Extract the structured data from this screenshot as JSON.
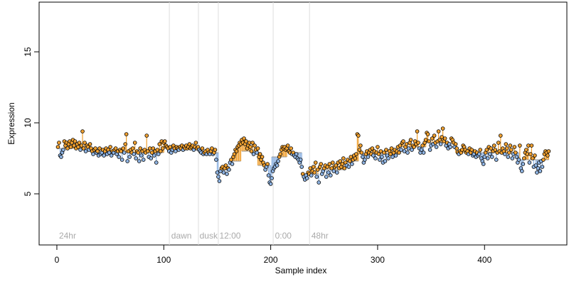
{
  "chart_data": {
    "type": "lollipop",
    "x_label": "Sample index",
    "y_label": "Expression",
    "xlim": [
      -16.6,
      477
    ],
    "ylim": [
      1.4,
      18.5
    ],
    "xticks": [
      0,
      100,
      200,
      300,
      400
    ],
    "yticks": [
      5,
      10,
      15
    ],
    "above_color": "#f0a030",
    "below_color": "#8fb4e3",
    "markers": {
      "x": [
        105.2,
        132.4,
        151,
        202.3,
        236.3
      ],
      "color": "#dddddd"
    },
    "time_labels": [
      {
        "x": 2,
        "label": "24hr"
      },
      {
        "x": 107,
        "label": "dawn"
      },
      {
        "x": 133.5,
        "label": "dusk"
      },
      {
        "x": 152,
        "label": "12:00"
      },
      {
        "x": 204,
        "label": "0:00"
      },
      {
        "x": 238,
        "label": "48hr"
      }
    ],
    "baseline": {
      "x0": [
        1,
        31,
        65,
        101,
        136,
        152,
        161,
        173,
        188,
        201,
        216,
        230,
        246,
        271,
        283,
        321,
        346,
        373,
        401,
        433
      ],
      "x1": [
        30,
        64,
        100,
        135,
        151,
        160,
        172,
        187,
        200,
        215,
        229,
        245,
        270,
        282,
        320,
        345,
        372,
        400,
        432,
        460
      ],
      "values": [
        8.2,
        8.0,
        7.9,
        8.2,
        7.9,
        6.7,
        7.3,
        8.0,
        7.0,
        7.6,
        7.9,
        6.4,
        6.7,
        7.3,
        7.8,
        8.3,
        8.6,
        7.9,
        7.9,
        7.4
      ]
    },
    "series": [
      {
        "x": [
          1,
          2,
          3,
          4,
          5,
          6,
          7,
          8,
          9,
          10,
          11,
          12,
          13,
          14,
          15,
          16,
          17,
          18,
          19,
          20,
          21,
          22,
          23,
          24,
          25,
          26,
          27,
          28,
          29,
          30,
          31,
          32,
          33,
          34,
          35,
          36,
          37,
          38,
          39,
          40,
          41,
          42,
          43,
          44,
          45,
          46,
          47,
          48,
          49,
          50,
          51,
          52,
          53,
          54,
          55,
          56,
          57,
          58,
          59,
          60,
          61,
          62,
          63,
          64,
          65,
          66,
          67,
          68,
          69,
          70,
          71,
          72,
          73,
          74,
          75,
          76,
          77,
          78,
          79,
          80,
          81,
          82,
          83,
          84,
          85,
          86,
          87,
          88,
          89,
          90,
          91,
          92,
          93,
          94,
          95,
          96,
          97,
          98,
          99,
          100,
          101,
          102,
          103,
          104,
          105,
          106,
          107,
          108,
          109,
          110,
          111,
          112,
          113,
          114,
          115,
          116,
          117,
          118,
          119,
          120,
          121,
          122,
          123,
          124,
          125,
          126,
          127,
          128,
          129,
          130,
          131,
          132,
          133,
          134,
          135,
          136,
          137,
          138,
          139,
          140,
          141,
          142,
          143,
          144,
          145,
          146,
          147,
          148,
          149,
          150,
          151,
          152,
          153,
          154,
          155,
          156,
          157,
          158,
          159,
          160,
          161,
          162,
          163,
          164,
          165,
          166,
          167,
          168,
          169,
          170,
          171,
          172,
          173,
          174,
          175,
          176,
          177,
          178,
          179,
          180,
          181,
          182,
          183,
          184,
          185,
          186,
          187,
          188,
          189,
          190,
          191,
          192,
          193,
          194,
          195,
          196,
          197,
          198,
          199,
          200,
          201,
          202,
          203,
          204,
          205,
          206,
          207,
          208,
          209,
          210,
          211,
          212,
          213,
          214,
          215,
          216,
          217,
          218,
          219,
          220,
          221,
          222,
          223,
          224,
          225,
          226,
          227,
          228,
          229,
          230,
          231,
          232,
          233,
          234,
          235,
          236,
          237,
          238,
          239,
          240,
          241,
          242,
          243,
          244,
          245,
          246,
          247,
          248,
          249,
          250,
          251,
          252,
          253,
          254,
          255,
          256,
          257,
          258,
          259,
          260,
          261,
          262,
          263,
          264,
          265,
          266,
          267,
          268,
          269,
          270,
          271,
          272,
          273,
          274,
          275,
          276,
          277,
          278,
          279,
          280,
          281,
          282,
          283,
          284,
          285,
          286,
          287,
          288,
          289,
          290,
          291,
          292,
          293,
          294,
          295,
          296,
          297,
          298,
          299,
          300,
          301,
          302,
          303,
          304,
          305,
          306,
          307,
          308,
          309,
          310,
          311,
          312,
          313,
          314,
          315,
          316,
          317,
          318,
          319,
          320,
          321,
          322,
          323,
          324,
          325,
          326,
          327,
          328,
          329,
          330,
          331,
          332,
          333,
          334,
          335,
          336,
          337,
          338,
          339,
          340,
          341,
          342,
          343,
          344,
          345,
          346,
          347,
          348,
          349,
          350,
          351,
          352,
          353,
          354,
          355,
          356,
          357,
          358,
          359,
          360,
          361,
          362,
          363,
          364,
          365,
          366,
          367,
          368,
          369,
          370,
          371,
          372,
          373,
          374,
          375,
          376,
          377,
          378,
          379,
          380,
          381,
          382,
          383,
          384,
          385,
          386,
          387,
          388,
          389,
          390,
          391,
          392,
          393,
          394,
          395,
          396,
          397,
          398,
          399,
          400,
          401,
          402,
          403,
          404,
          405,
          406,
          407,
          408,
          409,
          410,
          411,
          412,
          413,
          414,
          415,
          416,
          417,
          418,
          419,
          420,
          421,
          422,
          423,
          424,
          425,
          426,
          427,
          428,
          429,
          430,
          431,
          432,
          433,
          434,
          435,
          436,
          437,
          438,
          439,
          440,
          441,
          442,
          443,
          444,
          445,
          446,
          447,
          448,
          449,
          450,
          451,
          452,
          453,
          454,
          455,
          456,
          457,
          458,
          459,
          460
        ],
        "values": [
          8.3,
          8.6,
          7.7,
          7.6,
          7.9,
          8.1,
          8.7,
          8.4,
          8.6,
          8.2,
          8.5,
          8.7,
          8.3,
          8.6,
          8.8,
          8.4,
          8.7,
          8.2,
          8.5,
          8.3,
          8.6,
          8.1,
          8.4,
          9.4,
          8.2,
          8.6,
          8.0,
          8.4,
          8.3,
          8.1,
          8.5,
          8.2,
          8.0,
          7.8,
          8.1,
          8.2,
          7.9,
          8.0,
          7.7,
          8.2,
          7.8,
          7.9,
          8.1,
          7.7,
          8.0,
          8.2,
          7.8,
          8.1,
          7.9,
          8.3,
          7.7,
          8.0,
          7.9,
          8.1,
          8.2,
          7.8,
          8.0,
          7.6,
          8.1,
          8.0,
          7.4,
          8.2,
          7.9,
          8.5,
          9.2,
          7.3,
          8.0,
          7.6,
          8.1,
          7.9,
          8.2,
          7.8,
          8.6,
          7.5,
          8.0,
          7.9,
          7.3,
          8.2,
          7.7,
          8.0,
          7.4,
          8.1,
          7.9,
          9.1,
          8.0,
          7.6,
          8.2,
          7.5,
          7.9,
          8.2,
          7.7,
          8.0,
          7.2,
          8.1,
          7.8,
          8.5,
          8.0,
          8.7,
          8.2,
          8.6,
          8.7,
          8.4,
          8.3,
          8.2,
          8.0,
          8.3,
          7.9,
          8.1,
          8.4,
          8.2,
          8.0,
          8.3,
          8.2,
          8.1,
          8.3,
          8.2,
          8.4,
          8.1,
          8.3,
          8.2,
          8.4,
          8.2,
          8.3,
          8.5,
          8.2,
          8.3,
          8.4,
          8.1,
          8.3,
          8.6,
          8.2,
          8.3,
          8.1,
          8.0,
          7.9,
          8.2,
          7.8,
          7.9,
          8.0,
          7.8,
          8.1,
          7.9,
          7.8,
          8.0,
          8.2,
          7.8,
          7.9,
          8.1,
          7.4,
          6.5,
          6.2,
          5.9,
          6.6,
          6.8,
          6.9,
          6.5,
          6.8,
          7.0,
          6.4,
          6.8,
          6.7,
          7.2,
          7.4,
          7.1,
          7.6,
          7.8,
          8.1,
          8.0,
          8.3,
          8.4,
          8.6,
          8.5,
          8.8,
          8.6,
          8.9,
          8.5,
          8.7,
          8.2,
          8.4,
          8.6,
          8.3,
          8.0,
          8.6,
          7.8,
          8.4,
          8.1,
          7.9,
          8.2,
          7.6,
          7.8,
          7.4,
          7.6,
          7.2,
          7.0,
          6.7,
          6.9,
          7.1,
          6.3,
          5.8,
          5.7,
          6.1,
          6.6,
          6.8,
          6.9,
          7.1,
          7.0,
          7.3,
          7.6,
          7.8,
          8.1,
          8.3,
          8.2,
          8.3,
          8.1,
          8.2,
          8.4,
          8.0,
          7.9,
          8.2,
          7.8,
          7.9,
          7.7,
          7.6,
          7.8,
          7.5,
          7.4,
          7.2,
          7.4,
          6.9,
          6.4,
          6.2,
          6.0,
          6.3,
          6.1,
          6.5,
          6.4,
          6.8,
          6.3,
          6.6,
          6.9,
          6.5,
          7.2,
          6.2,
          6.7,
          5.8,
          6.9,
          7.1,
          6.4,
          6.6,
          6.8,
          7.0,
          6.2,
          6.9,
          6.5,
          7.1,
          6.3,
          6.8,
          7.2,
          6.6,
          6.9,
          7.0,
          6.5,
          7.2,
          6.8,
          7.3,
          6.9,
          7.1,
          7.5,
          6.8,
          7.2,
          7.0,
          7.4,
          6.9,
          7.3,
          7.6,
          7.1,
          7.4,
          7.7,
          7.5,
          7.8,
          9.2,
          9.1,
          8.1,
          8.4,
          7.9,
          7.6,
          7.2,
          7.4,
          7.8,
          8.0,
          7.6,
          7.9,
          8.1,
          7.8,
          8.2,
          7.7,
          8.0,
          7.5,
          7.9,
          8.3,
          7.8,
          7.4,
          8.0,
          7.6,
          7.2,
          7.9,
          7.3,
          8.1,
          7.7,
          7.5,
          8.0,
          7.8,
          8.2,
          7.6,
          7.9,
          8.1,
          7.7,
          8.0,
          8.3,
          7.9,
          8.4,
          8.1,
          8.6,
          8.7,
          8.0,
          8.3,
          8.5,
          7.9,
          8.2,
          8.6,
          8.8,
          8.1,
          8.4,
          8.3,
          8.7,
          8.5,
          9.4,
          8.6,
          8.2,
          7.9,
          8.1,
          8.4,
          7.9,
          8.6,
          8.8,
          9.3,
          9.2,
          8.7,
          8.1,
          8.4,
          8.9,
          8.5,
          9.1,
          8.6,
          8.3,
          8.7,
          9.4,
          8.8,
          8.5,
          9.0,
          9.6,
          8.7,
          8.9,
          8.4,
          8.6,
          8.2,
          8.5,
          8.3,
          8.9,
          8.8,
          8.6,
          8.3,
          8.5,
          8.2,
          7.9,
          7.8,
          8.0,
          7.9,
          8.1,
          8.4,
          8.3,
          8.1,
          7.9,
          8.0,
          7.8,
          8.2,
          7.9,
          8.1,
          7.7,
          7.8,
          8.0,
          7.6,
          7.9,
          7.7,
          7.8,
          8.1,
          7.5,
          7.3,
          7.1,
          7.6,
          7.9,
          8.1,
          7.5,
          8.3,
          7.8,
          8.2,
          7.6,
          8.0,
          8.4,
          8.1,
          7.4,
          7.9,
          8.6,
          8.0,
          9.1,
          7.9,
          8.2,
          8.0,
          7.8,
          8.5,
          8.2,
          7.6,
          7.9,
          8.4,
          8.1,
          7.5,
          7.8,
          8.3,
          7.9,
          7.6,
          7.2,
          7.4,
          8.4,
          6.8,
          6.6,
          7.1,
          7.5,
          7.9,
          8.1,
          7.8,
          8.4,
          7.2,
          7.8,
          8.4,
          7.5,
          6.9,
          7.7,
          7.0,
          6.5,
          6.8,
          7.2,
          6.6,
          7.3,
          6.9,
          7.4,
          7.8,
          8.0,
          7.9,
          7.7,
          8.0
        ]
      }
    ]
  }
}
